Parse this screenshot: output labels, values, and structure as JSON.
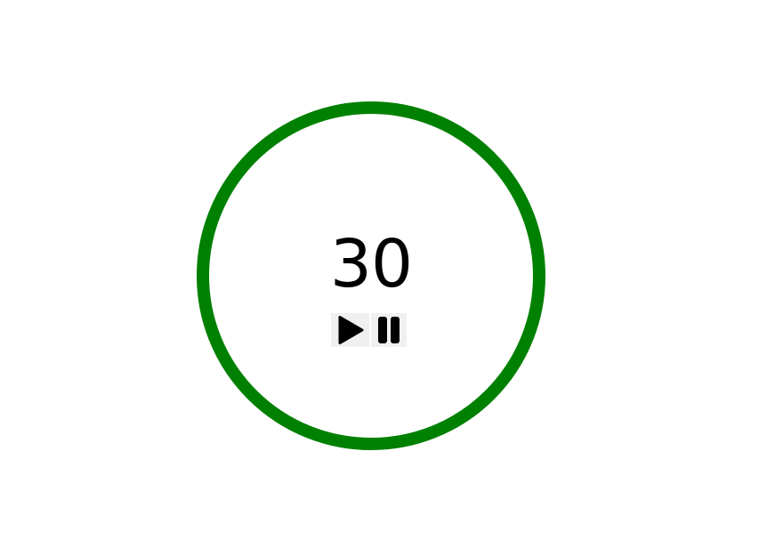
{
  "timer": {
    "value": "30",
    "ring_color": "#008000"
  },
  "controls": {
    "play_icon": "play-icon",
    "pause_icon": "pause-icon"
  }
}
